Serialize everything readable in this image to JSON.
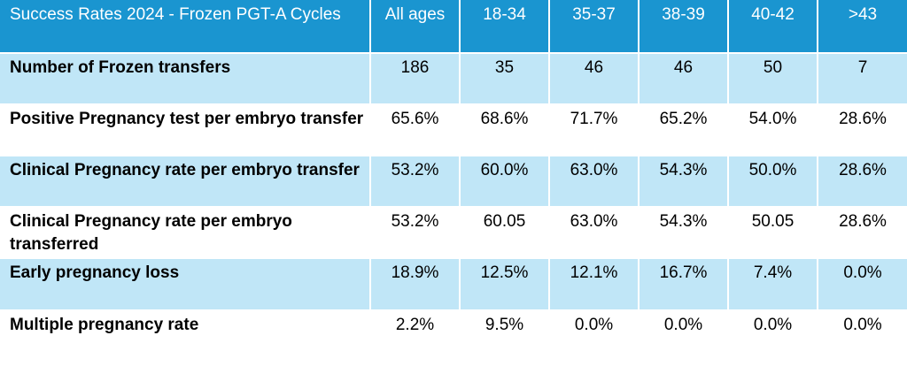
{
  "table": {
    "title": "Success Rates 2024 - Frozen PGT-A Cycles",
    "columns": [
      "All ages",
      "18-34",
      "35-37",
      "38-39",
      "40-42",
      ">43"
    ],
    "rows": [
      {
        "label": "Number of Frozen transfers",
        "values": [
          "186",
          "35",
          "46",
          "46",
          "50",
          "7"
        ]
      },
      {
        "label": "Positive Pregnancy test per embryo transfer",
        "values": [
          "65.6%",
          "68.6%",
          "71.7%",
          "65.2%",
          "54.0%",
          "28.6%"
        ]
      },
      {
        "label": "Clinical Pregnancy rate per embryo transfer",
        "values": [
          "53.2%",
          "60.0%",
          "63.0%",
          "54.3%",
          "50.0%",
          "28.6%"
        ]
      },
      {
        "label": "Clinical Pregnancy rate per embryo transferred",
        "values": [
          "53.2%",
          "60.05",
          "63.0%",
          "54.3%",
          "50.05",
          "28.6%"
        ]
      },
      {
        "label": "Early pregnancy loss",
        "values": [
          "18.9%",
          "12.5%",
          "12.1%",
          "16.7%",
          "7.4%",
          "0.0%"
        ]
      },
      {
        "label": "Multiple pregnancy rate",
        "values": [
          "2.2%",
          "9.5%",
          "0.0%",
          "0.0%",
          "0.0%",
          "0.0%"
        ]
      }
    ]
  },
  "colors": {
    "header_bg": "#1a95d0",
    "shade_bg": "#c0e6f7",
    "plain_bg": "#ffffff"
  }
}
